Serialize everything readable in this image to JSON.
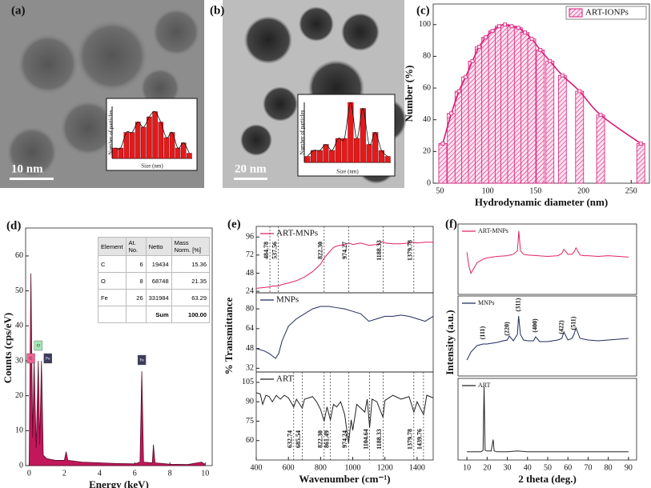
{
  "chart_data": [
    {
      "type": "bar",
      "label": "(a)",
      "scale_bar": "10 nm",
      "xlabel": "Size (nm)",
      "ylabel": "Number of particles",
      "values": [
        2,
        2,
        5,
        5,
        7,
        6,
        8,
        9,
        7,
        4,
        5,
        2,
        3,
        1
      ],
      "color": "#e31a1c",
      "ylim": [
        0,
        10
      ],
      "fit": true
    },
    {
      "type": "bar",
      "label": "(b)",
      "scale_bar": "20 nm",
      "xlabel": "Size (nm)",
      "ylabel": "Number of particles",
      "values": [
        1,
        2,
        2,
        3,
        2,
        4,
        4,
        10,
        4,
        9,
        3,
        5,
        2,
        1
      ],
      "color": "#e31a1c",
      "ylim": [
        0,
        10
      ],
      "fit": true
    },
    {
      "type": "bar",
      "label": "(c)",
      "xlabel": "Hydrodynamic diameter (nm)",
      "ylabel": "Number (%)",
      "x": [
        53,
        62,
        70,
        77,
        84,
        91,
        98,
        105,
        112,
        118,
        125,
        132,
        139,
        146,
        155,
        165,
        178,
        196,
        218,
        260
      ],
      "series": [
        {
          "name": "ART-IONPs",
          "color": "#d81b7a",
          "values": [
            25,
            44,
            58,
            67,
            77,
            86,
            92,
            96,
            99,
            100,
            99,
            98,
            95,
            91,
            84,
            77,
            68,
            58,
            43,
            25
          ]
        }
      ],
      "xlim": [
        43,
        269
      ],
      "xticks": [
        50,
        100,
        150,
        200,
        250
      ],
      "ylim": [
        0,
        113
      ],
      "yticks": [
        0,
        20,
        40,
        60,
        80,
        100
      ],
      "legend": "upper right",
      "fit": true
    },
    {
      "type": "area",
      "label": "(d)",
      "xlabel": "Energy (keV)",
      "ylabel": "Counts (cps/eV)",
      "x": [
        0,
        0.1,
        0.2,
        0.28,
        0.4,
        0.52,
        0.6,
        0.7,
        0.8,
        1,
        1.5,
        2.0,
        2.1,
        2.2,
        3,
        4,
        5,
        6,
        6.3,
        6.4,
        6.5,
        7,
        7.06,
        7.15,
        8,
        9,
        9.8,
        10
      ],
      "values": [
        0,
        55,
        8,
        30,
        5,
        30,
        6,
        30,
        3,
        2,
        1.5,
        1.5,
        4,
        1.5,
        1,
        0.8,
        0.6,
        0.5,
        1,
        27,
        1,
        0.8,
        6,
        0.8,
        0.4,
        0.3,
        1,
        0.3
      ],
      "color": "#c2185b",
      "xlim": [
        -0.2,
        10.4
      ],
      "xticks": [
        0,
        2,
        4,
        6,
        8,
        10
      ],
      "ylim": [
        0,
        68
      ],
      "yticks": [
        0,
        10,
        20,
        30,
        40,
        50,
        60
      ],
      "annotations": [
        {
          "text": "C",
          "x": 0.28,
          "color": "#f06292"
        },
        {
          "text": "O",
          "x": 0.52,
          "color": "#a5e6b8"
        },
        {
          "text": "Fe",
          "x": 0.7,
          "color": "#3b3b5c"
        },
        {
          "text": "Fe",
          "x": 6.4,
          "color": "#3b3b5c"
        }
      ],
      "table": {
        "header": [
          "Element",
          "At. No.",
          "Netto",
          "Mass Norm. [%]"
        ],
        "rows": [
          [
            "C",
            "6",
            "19434",
            "15.36"
          ],
          [
            "O",
            "8",
            "68748",
            "21.35"
          ],
          [
            "Fe",
            "26",
            "331984",
            "63.29"
          ],
          [
            "",
            "",
            "Sum",
            "100.00"
          ]
        ]
      }
    },
    {
      "type": "line",
      "label": "(e)",
      "x": [
        400,
        450,
        485,
        500,
        538,
        560,
        600,
        650,
        700,
        750,
        800,
        822,
        850,
        880,
        900,
        950,
        974,
        1000,
        1050,
        1100,
        1150,
        1188,
        1200,
        1250,
        1300,
        1350,
        1380,
        1400,
        1450,
        1500
      ],
      "series": [
        {
          "name": "ART-MNPs",
          "color": "#e0245e",
          "values": [
            28,
            29,
            30,
            31,
            31,
            33,
            35,
            38,
            43,
            50,
            60,
            68,
            75,
            82,
            84,
            86,
            88,
            86,
            88,
            85,
            86,
            90,
            88,
            87,
            87,
            88,
            89,
            88,
            89,
            89
          ]
        }
      ],
      "xlim": [
        400,
        1500
      ],
      "ylim": [
        22,
        110
      ],
      "yticks": [
        24,
        48,
        72,
        96
      ],
      "peaks": [
        {
          "value": 484.78,
          "label": "484.78"
        },
        {
          "value": 537.56,
          "label": "537.56"
        },
        {
          "value": 822.3,
          "label": "822.30"
        },
        {
          "value": 974.27,
          "label": "974.27"
        },
        {
          "value": 1188.33,
          "label": "1188.33"
        },
        {
          "value": 1379.78,
          "label": "1379.78"
        }
      ]
    },
    {
      "type": "line",
      "ylabel": "% Transmittance",
      "x": [
        400,
        450,
        480,
        500,
        520,
        540,
        560,
        600,
        650,
        700,
        750,
        800,
        850,
        900,
        950,
        1000,
        1050,
        1100,
        1150,
        1200,
        1250,
        1300,
        1350,
        1400,
        1450,
        1500
      ],
      "series": [
        {
          "name": "MNPs",
          "color": "#1f2a5c",
          "values": [
            48,
            46,
            44,
            42,
            40,
            44,
            54,
            66,
            72,
            76,
            80,
            82,
            82,
            81,
            80,
            78,
            76,
            70,
            72,
            74,
            74,
            75,
            74,
            72,
            70,
            74
          ]
        }
      ],
      "xlim": [
        400,
        1500
      ],
      "ylim": [
        29,
        93
      ],
      "yticks": [
        32,
        48,
        64,
        80
      ]
    },
    {
      "type": "line",
      "xlabel": "Wavenumber (cm⁻¹)",
      "x": [
        400,
        425,
        440,
        460,
        480,
        500,
        525,
        550,
        575,
        600,
        633,
        650,
        686,
        700,
        725,
        750,
        775,
        800,
        822,
        840,
        861,
        880,
        900,
        925,
        950,
        974,
        990,
        1000,
        1025,
        1050,
        1075,
        1090,
        1105,
        1120,
        1150,
        1188,
        1200,
        1250,
        1300,
        1350,
        1380,
        1400,
        1440,
        1460,
        1500
      ],
      "series": [
        {
          "name": "ART",
          "color": "#222222",
          "values": [
            97,
            96,
            88,
            95,
            94,
            90,
            95,
            92,
            95,
            93,
            86,
            92,
            85,
            92,
            93,
            94,
            90,
            84,
            75,
            86,
            76,
            88,
            86,
            90,
            80,
            58,
            76,
            68,
            88,
            85,
            82,
            92,
            70,
            92,
            90,
            78,
            91,
            95,
            92,
            94,
            82,
            90,
            80,
            95,
            93
          ]
        }
      ],
      "xlim": [
        400,
        1500
      ],
      "xticks": [
        400,
        600,
        800,
        1000,
        1200,
        1400
      ],
      "ylim": [
        45,
        113
      ],
      "yticks": [
        60,
        75,
        90,
        105
      ],
      "peaks": [
        {
          "value": 632.74,
          "label": "632.74"
        },
        {
          "value": 685.54,
          "label": "685.54"
        },
        {
          "value": 822.3,
          "label": "822.30"
        },
        {
          "value": 861.49,
          "label": "861.49"
        },
        {
          "value": 974.24,
          "label": "974.24"
        },
        {
          "value": 1104.64,
          "label": "1104.64"
        },
        {
          "value": 1188.33,
          "label": "1188.33"
        },
        {
          "value": 1379.78,
          "label": "1379.78"
        },
        {
          "value": 1439.76,
          "label": "1439.76"
        }
      ]
    },
    {
      "type": "line",
      "label": "(f)",
      "x": [
        10,
        11,
        12,
        13,
        15,
        18,
        20,
        25,
        30,
        33,
        35,
        35.7,
        36.5,
        38,
        40,
        45,
        50,
        55,
        57,
        58,
        60,
        62,
        63,
        64,
        66,
        68,
        70,
        75,
        80,
        85,
        90
      ],
      "series": [
        {
          "name": "ART-MNPs",
          "color": "#e0245e",
          "values": [
            60,
            40,
            30,
            35,
            45,
            50,
            52,
            54,
            55,
            57,
            62,
            90,
            62,
            57,
            56,
            55,
            54,
            55,
            58,
            64,
            57,
            57,
            60,
            66,
            56,
            55,
            55,
            54,
            55,
            54,
            53
          ]
        }
      ],
      "xlim": [
        5.6,
        94
      ],
      "ylim": [
        0,
        100
      ]
    },
    {
      "type": "line",
      "ylabel": "Intensity (a.u.)",
      "x": [
        10,
        12,
        15,
        18,
        20,
        25,
        28,
        30,
        31,
        33,
        35,
        35.6,
        36.5,
        38,
        40,
        43,
        44,
        46,
        50,
        55,
        57,
        58,
        60,
        62,
        63,
        64,
        66,
        70,
        75,
        80,
        85,
        90
      ],
      "series": [
        {
          "name": "MNPs",
          "color": "#1f2a5c",
          "values": [
            20,
            30,
            38,
            40,
            40,
            42,
            44,
            45,
            50,
            44,
            52,
            75,
            52,
            45,
            44,
            44,
            49,
            43,
            43,
            45,
            47,
            55,
            45,
            47,
            52,
            60,
            47,
            45,
            44,
            45,
            46,
            47
          ]
        }
      ],
      "xlim": [
        5.6,
        94
      ],
      "ylim": [
        0,
        100
      ],
      "annotations": [
        {
          "text": "(111)",
          "x": 18
        },
        {
          "text": "(220)",
          "x": 30
        },
        {
          "text": "(311)",
          "x": 35.6
        },
        {
          "text": "(400)",
          "x": 44
        },
        {
          "text": "(422)",
          "x": 57
        },
        {
          "text": "(511)",
          "x": 63
        }
      ]
    },
    {
      "type": "line",
      "xlabel": "2 theta (deg.)",
      "x": [
        10,
        15,
        17,
        18,
        18.5,
        19,
        20,
        22,
        23,
        23.5,
        25,
        30,
        35,
        40,
        50,
        60,
        70,
        80,
        90
      ],
      "series": [
        {
          "name": "ART",
          "color": "#222222",
          "values": [
            10,
            10,
            10,
            12,
            90,
            12,
            11,
            11,
            25,
            11,
            10,
            10,
            11,
            10,
            10,
            10,
            10,
            10,
            10
          ]
        }
      ],
      "xlim": [
        5.6,
        94
      ],
      "xticks": [
        10,
        20,
        30,
        40,
        50,
        60,
        70,
        80,
        90
      ],
      "ylim": [
        0,
        100
      ]
    }
  ]
}
